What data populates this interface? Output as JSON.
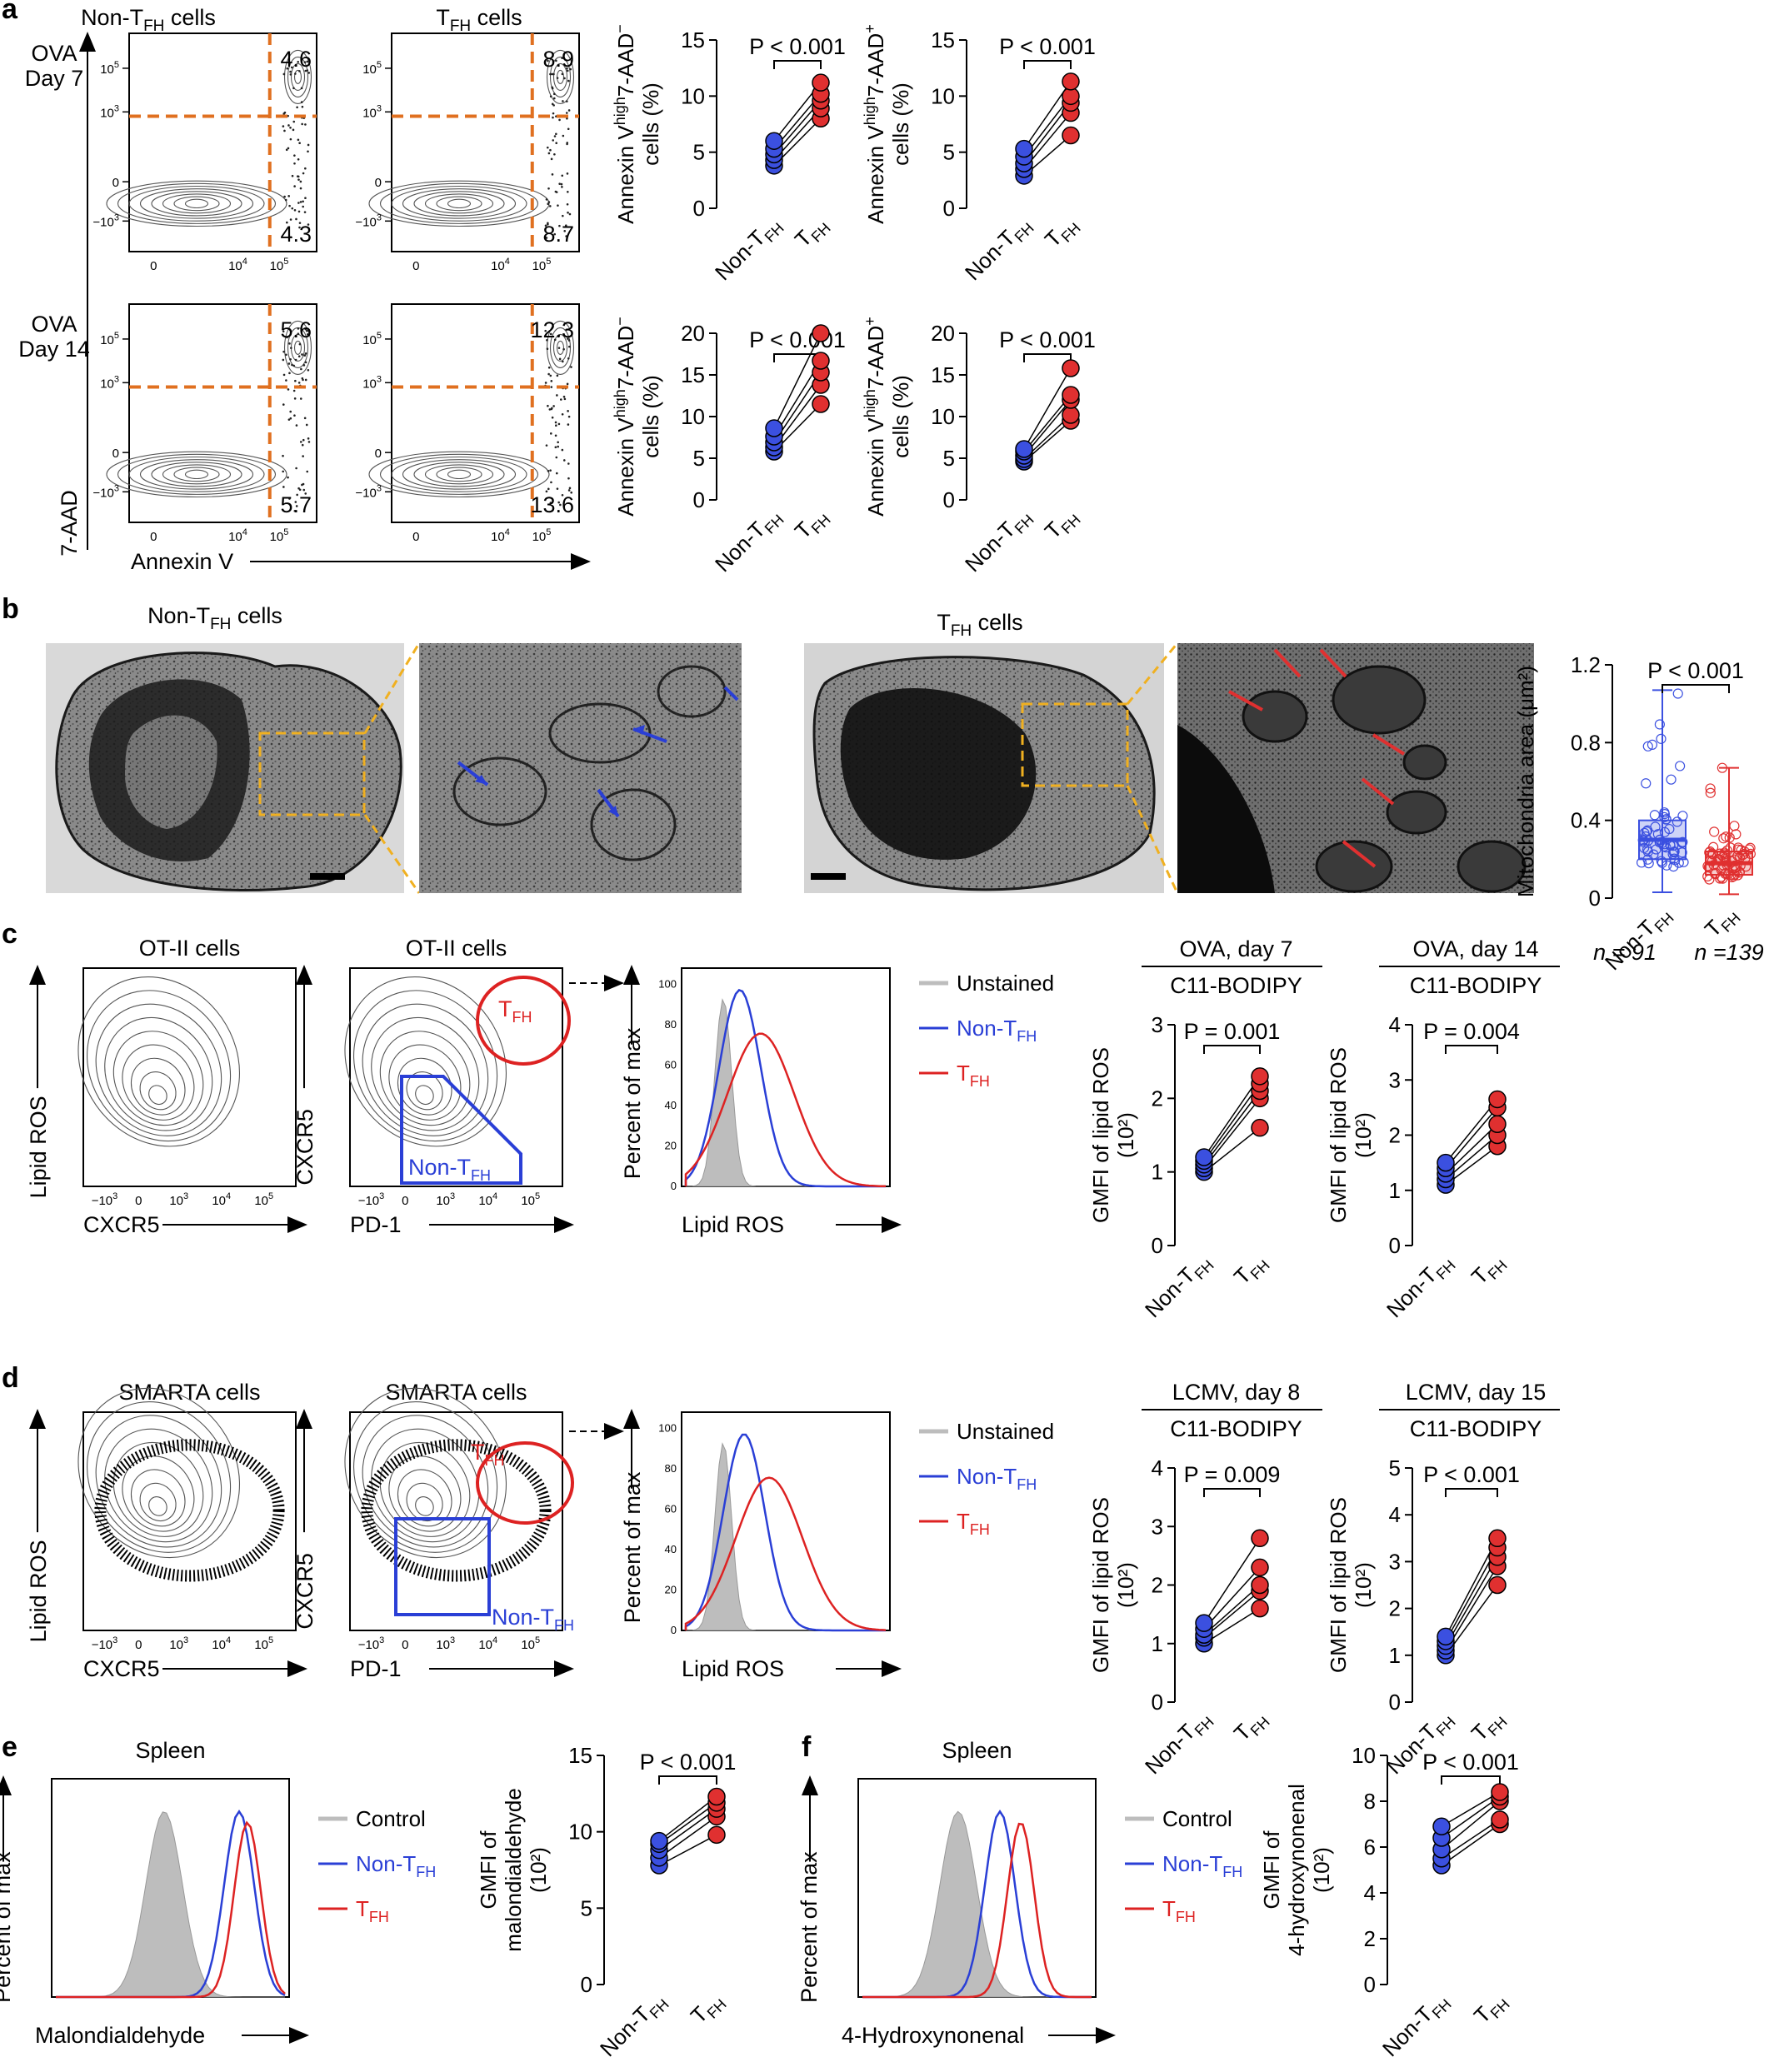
{
  "panel_letters": [
    "a",
    "b",
    "c",
    "d",
    "e",
    "f"
  ],
  "colors": {
    "blue": "#3b50e0",
    "red": "#e03030",
    "gate_orange": "#e07020",
    "gate_blue": "#2a3fd6",
    "gate_red": "#dd2222",
    "unstained_gray": "#bdbdbd",
    "yellow_box": "#f0b020"
  },
  "a": {
    "col_titles": [
      "Non-T",
      "T"
    ],
    "col_title_sub": "FH",
    "col_title_suffix": " cells",
    "row_labels": [
      [
        "OVA",
        "Day 7"
      ],
      [
        "OVA",
        "Day 14"
      ]
    ],
    "flow_quadrants": [
      {
        "ur": "4.6",
        "lr": "4.3"
      },
      {
        "ur": "8.9",
        "lr": "8.7"
      },
      {
        "ur": "5.6",
        "lr": "5.7"
      },
      {
        "ur": "12.3",
        "lr": "13.6"
      }
    ],
    "flow_xticks": [
      "0",
      "10",
      "10"
    ],
    "flow_yticks": [
      "10",
      "10",
      "0",
      "−10"
    ],
    "y_axis": "7-AAD",
    "x_axis": "Annexin V",
    "pvalue": "P < 0.001"
  },
  "b": {
    "title_non": "Non-T",
    "title_tfh": "T",
    "title_sub": "FH",
    "title_suffix": " cells",
    "ylabel": "Mitochondria area (μm²)",
    "pvalue": "P < 0.001",
    "n_labels": [
      "n = 91",
      "n =139"
    ]
  },
  "c": {
    "panel1_title": "OT-II cells",
    "panel2_title": "OT-II cells",
    "y1": "Lipid ROS",
    "x1": "CXCR5",
    "y2": "CXCR5",
    "x2": "PD-1",
    "hist_y": "Percent of max",
    "hist_x": "Lipid ROS",
    "legend": [
      "Unstained",
      "Non-T",
      "T"
    ],
    "gmfi_titles": [
      "OVA, day 7",
      "OVA, day 14"
    ],
    "gmfi_subtitle": "C11-BODIPY",
    "gmfi_p": [
      "P = 0.001",
      "P = 0.004"
    ],
    "gmfi_ylabel": "GMFI of lipid ROS",
    "gmfi_unit": "(10²)"
  },
  "d": {
    "panel1_title": "SMARTA cells",
    "panel2_title": "SMARTA cells",
    "gmfi_titles": [
      "LCMV, day 8",
      "LCMV, day 15"
    ],
    "gmfi_p": [
      "P = 0.009",
      "P < 0.001"
    ]
  },
  "e": {
    "title": "Spleen",
    "hist_x": "Malondialdehyde",
    "legend": [
      "Control",
      "Non-T",
      "T"
    ],
    "ylabel": [
      "GMFI of",
      "malondialdehyde",
      "(10²)"
    ],
    "pvalue": "P < 0.001"
  },
  "f": {
    "title": "Spleen",
    "hist_x": "4-Hydroxynonenal",
    "legend": [
      "Control",
      "Non-T",
      "T"
    ],
    "ylabel": [
      "GMFI of",
      "4-hydroxynonenal",
      "(10²)"
    ],
    "pvalue": "P < 0.001"
  },
  "common": {
    "non_tfh_prefix": "Non-T",
    "tfh_prefix": "T",
    "sub": "FH"
  },
  "chart_data": [
    {
      "type": "scatter",
      "panel": "a",
      "ylabel": "Annexin Vhigh7-AAD− cells (%)",
      "categories": [
        "Non-TFH",
        "TFH"
      ],
      "ylim": [
        0,
        15
      ],
      "yticks": [
        0,
        5,
        10,
        15
      ],
      "pvalue": "P < 0.001",
      "series": [
        {
          "values": [
            [
              3.8,
              8.0
            ],
            [
              4.3,
              8.9
            ],
            [
              4.8,
              9.6
            ],
            [
              5.3,
              10.2
            ],
            [
              6.0,
              11.2
            ]
          ]
        }
      ]
    },
    {
      "type": "scatter",
      "panel": "a",
      "ylabel": "Annexin Vhigh7-AAD+ cells (%)",
      "categories": [
        "Non-TFH",
        "TFH"
      ],
      "ylim": [
        0,
        15
      ],
      "yticks": [
        0,
        5,
        10,
        15
      ],
      "pvalue": "P < 0.001",
      "series": [
        {
          "values": [
            [
              2.9,
              6.5
            ],
            [
              3.5,
              8.5
            ],
            [
              4.0,
              9.4
            ],
            [
              4.6,
              10.0
            ],
            [
              5.3,
              11.3
            ]
          ]
        }
      ]
    },
    {
      "type": "scatter",
      "panel": "a",
      "ylabel": "Annexin Vhigh7-AAD− cells (%)",
      "categories": [
        "Non-TFH",
        "TFH"
      ],
      "ylim": [
        0,
        20
      ],
      "yticks": [
        0,
        5,
        10,
        15,
        20
      ],
      "pvalue": "P < 0.001",
      "series": [
        {
          "values": [
            [
              5.8,
              11.5
            ],
            [
              6.3,
              13.8
            ],
            [
              6.9,
              15.3
            ],
            [
              7.6,
              16.7
            ],
            [
              8.6,
              20.0
            ]
          ]
        }
      ]
    },
    {
      "type": "scatter",
      "panel": "a",
      "ylabel": "Annexin Vhigh7-AAD+ cells (%)",
      "categories": [
        "Non-TFH",
        "TFH"
      ],
      "ylim": [
        0,
        20
      ],
      "yticks": [
        0,
        5,
        10,
        15,
        20
      ],
      "pvalue": "P < 0.001",
      "series": [
        {
          "values": [
            [
              4.6,
              9.5
            ],
            [
              4.9,
              10.2
            ],
            [
              5.3,
              12.0
            ],
            [
              5.8,
              12.6
            ],
            [
              6.1,
              15.8
            ]
          ]
        }
      ]
    },
    {
      "type": "box",
      "panel": "b",
      "ylabel": "Mitochondria area (μm²)",
      "categories": [
        "Non-TFH",
        "TFH"
      ],
      "ylim": [
        0,
        1.2
      ],
      "yticks": [
        0,
        0.4,
        0.8,
        1.2
      ],
      "pvalue": "P < 0.001",
      "series": [
        {
          "min": 0.03,
          "q1": 0.2,
          "median": 0.3,
          "q3": 0.4,
          "max": 1.07
        },
        {
          "min": 0.02,
          "q1": 0.12,
          "median": 0.18,
          "q3": 0.24,
          "max": 0.67
        }
      ],
      "n": [
        91,
        139
      ]
    },
    {
      "type": "scatter",
      "panel": "c",
      "title": "OVA, day 7",
      "subtitle": "C11-BODIPY",
      "ylabel": "GMFI of lipid ROS (10²)",
      "categories": [
        "Non-TFH",
        "TFH"
      ],
      "ylim": [
        0,
        3
      ],
      "yticks": [
        0,
        1,
        2,
        3
      ],
      "pvalue": "P = 0.001",
      "series": [
        {
          "values": [
            [
              1.0,
              1.6
            ],
            [
              1.05,
              2.0
            ],
            [
              1.1,
              2.1
            ],
            [
              1.15,
              2.2
            ],
            [
              1.2,
              2.3
            ]
          ]
        }
      ]
    },
    {
      "type": "scatter",
      "panel": "c",
      "title": "OVA, day 14",
      "subtitle": "C11-BODIPY",
      "ylabel": "GMFI of lipid ROS (10²)",
      "categories": [
        "Non-TFH",
        "TFH"
      ],
      "ylim": [
        0,
        4
      ],
      "yticks": [
        0,
        1,
        2,
        3,
        4
      ],
      "pvalue": "P = 0.004",
      "series": [
        {
          "values": [
            [
              1.1,
              1.8
            ],
            [
              1.2,
              2.0
            ],
            [
              1.3,
              2.2
            ],
            [
              1.4,
              2.5
            ],
            [
              1.5,
              2.65
            ]
          ]
        }
      ]
    },
    {
      "type": "scatter",
      "panel": "d",
      "title": "LCMV, day 8",
      "subtitle": "C11-BODIPY",
      "ylabel": "GMFI of lipid ROS (10²)",
      "categories": [
        "Non-TFH",
        "TFH"
      ],
      "ylim": [
        0,
        4
      ],
      "yticks": [
        0,
        1,
        2,
        3,
        4
      ],
      "pvalue": "P = 0.009",
      "series": [
        {
          "values": [
            [
              1.0,
              1.6
            ],
            [
              1.1,
              1.9
            ],
            [
              1.15,
              2.0
            ],
            [
              1.25,
              2.3
            ],
            [
              1.35,
              2.8
            ]
          ]
        }
      ]
    },
    {
      "type": "scatter",
      "panel": "d",
      "title": "LCMV, day 15",
      "subtitle": "C11-BODIPY",
      "ylabel": "GMFI of lipid ROS (10²)",
      "categories": [
        "Non-TFH",
        "TFH"
      ],
      "ylim": [
        0,
        5
      ],
      "yticks": [
        0,
        1,
        2,
        3,
        4,
        5
      ],
      "pvalue": "P < 0.001",
      "series": [
        {
          "values": [
            [
              1.0,
              2.5
            ],
            [
              1.1,
              2.9
            ],
            [
              1.2,
              3.1
            ],
            [
              1.3,
              3.3
            ],
            [
              1.4,
              3.5
            ]
          ]
        }
      ]
    },
    {
      "type": "scatter",
      "panel": "e",
      "ylabel": "GMFI of malondialdehyde (10²)",
      "categories": [
        "Non-TFH",
        "TFH"
      ],
      "ylim": [
        0,
        15
      ],
      "yticks": [
        0,
        5,
        10,
        15
      ],
      "pvalue": "P < 0.001",
      "series": [
        {
          "values": [
            [
              7.8,
              9.8
            ],
            [
              8.3,
              11.0
            ],
            [
              8.8,
              11.5
            ],
            [
              9.2,
              11.9
            ],
            [
              9.4,
              12.3
            ]
          ]
        }
      ]
    },
    {
      "type": "scatter",
      "panel": "f",
      "ylabel": "GMFI of 4-hydroxynonenal (10²)",
      "categories": [
        "Non-TFH",
        "TFH"
      ],
      "ylim": [
        0,
        10
      ],
      "yticks": [
        0,
        2,
        4,
        6,
        8,
        10
      ],
      "pvalue": "P < 0.001",
      "series": [
        {
          "values": [
            [
              5.2,
              7.0
            ],
            [
              5.5,
              7.2
            ],
            [
              5.9,
              8.0
            ],
            [
              6.4,
              8.2
            ],
            [
              6.9,
              8.4
            ]
          ]
        }
      ]
    }
  ]
}
